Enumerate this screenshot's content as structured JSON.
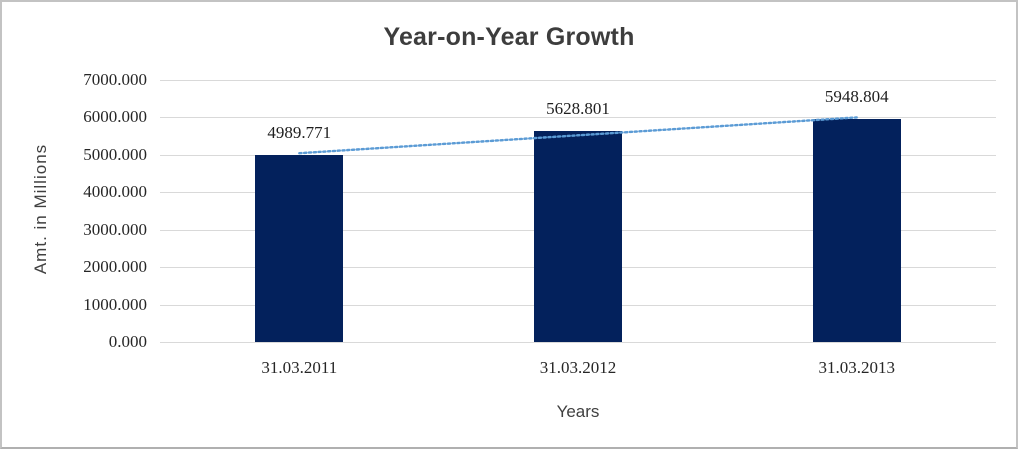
{
  "chart_data": {
    "type": "bar",
    "title": "Year-on-Year Growth",
    "categories": [
      "31.03.2011",
      "31.03.2012",
      "31.03.2013"
    ],
    "values": [
      4989.771,
      5628.801,
      5948.804
    ],
    "value_labels": [
      "4989.771",
      "5628.801",
      "5948.804"
    ],
    "xlabel": "Years",
    "ylabel": "Amt. in Millions",
    "ylim": [
      0,
      7000
    ],
    "ytick_step": 1000,
    "yticks": [
      {
        "value": 7000,
        "label": "7000.000"
      },
      {
        "value": 6000,
        "label": "6000.000"
      },
      {
        "value": 5000,
        "label": "5000.000"
      },
      {
        "value": 4000,
        "label": "4000.000"
      },
      {
        "value": 3000,
        "label": "3000.000"
      },
      {
        "value": 2000,
        "label": "2000.000"
      },
      {
        "value": 1000,
        "label": "1000.000"
      },
      {
        "value": 0,
        "label": "0.000"
      }
    ],
    "grid": true,
    "legend": "none",
    "trendline": {
      "type": "linear",
      "style": "dotted"
    },
    "colors": {
      "bar": "#03215C",
      "trendline": "#5B9BD5",
      "gridline": "#D9D9D9",
      "title_text": "#3D3D3D",
      "tick_text": "#262626",
      "axis_title_text": "#404040",
      "background": "#FFFFFF",
      "frame_border": "#C3C3C3"
    }
  }
}
